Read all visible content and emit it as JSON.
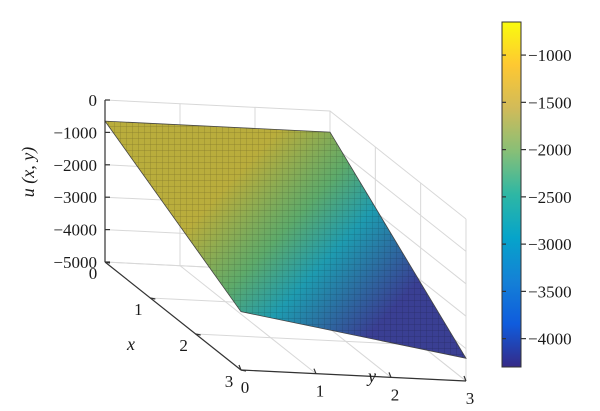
{
  "chart_data": {
    "type": "surface",
    "zlabel": "u (x, y)",
    "xlabel": "x",
    "ylabel": "y",
    "x_ticks": [
      0,
      1,
      2,
      3
    ],
    "y_ticks": [
      0,
      1,
      2,
      3
    ],
    "z_ticks": [
      0,
      -1000,
      -2000,
      -3000,
      -4000,
      -5000
    ],
    "z_tick_labels": [
      "0",
      "−1000",
      "−2000",
      "−3000",
      "−4000",
      "−5000"
    ],
    "xlim": [
      0,
      3
    ],
    "ylim": [
      0,
      3
    ],
    "zlim": [
      -5000,
      0
    ],
    "corners": [
      {
        "x": 0,
        "y": 0,
        "z": -650
      },
      {
        "x": 0,
        "y": 3,
        "z": -650
      },
      {
        "x": 3,
        "y": 0,
        "z": -3200
      },
      {
        "x": 3,
        "y": 3,
        "z": -4300
      }
    ],
    "colorbar": {
      "colormap": "parula",
      "range": [
        -4300,
        -650
      ],
      "ticks": [
        -1000,
        -1500,
        -2000,
        -2500,
        -3000,
        -3500,
        -4000
      ],
      "tick_labels": [
        "−1000",
        "−1500",
        "−2000",
        "−2500",
        "−3000",
        "−3500",
        "−4000"
      ]
    },
    "grid": true
  }
}
